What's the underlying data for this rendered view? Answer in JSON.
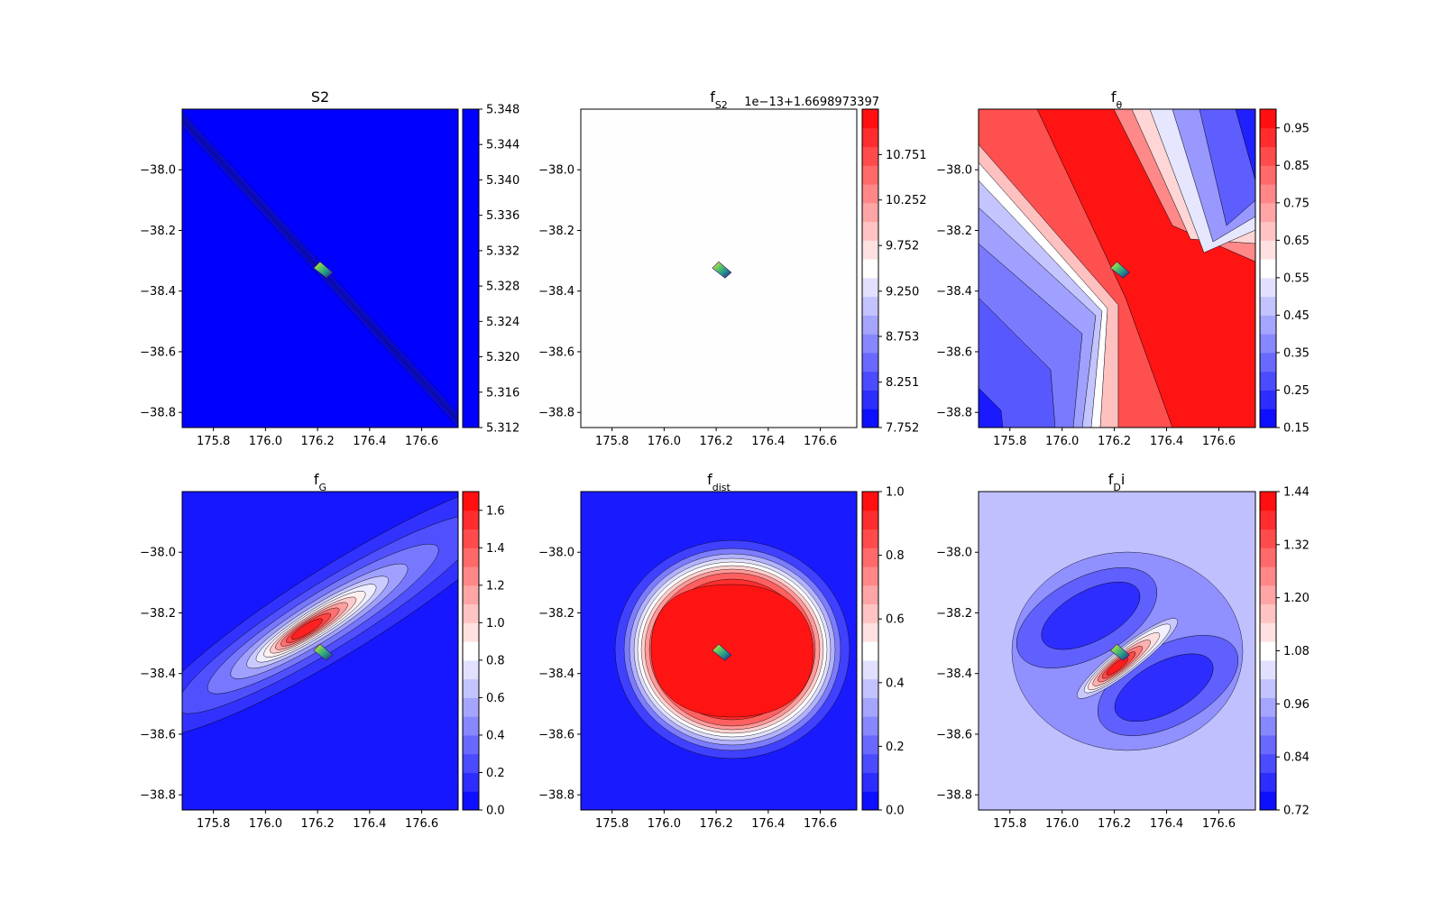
{
  "figure": {
    "panels": [
      {
        "id": "s2",
        "title": "S2",
        "title_sub": "",
        "title_suffix": "",
        "offset_text": ""
      },
      {
        "id": "fs2",
        "title": "f",
        "title_sub": "S2",
        "title_suffix": "",
        "offset_text": "1e−13+1.6698973397"
      },
      {
        "id": "ftheta",
        "title": "f",
        "title_sub": "θ",
        "title_suffix": "",
        "offset_text": ""
      },
      {
        "id": "fg",
        "title": "f",
        "title_sub": "G",
        "title_suffix": "",
        "offset_text": ""
      },
      {
        "id": "fdist",
        "title": "f",
        "title_sub": "dist",
        "title_suffix": "",
        "offset_text": ""
      },
      {
        "id": "fdi",
        "title": "f",
        "title_sub": "D",
        "title_suffix": "i",
        "offset_text": ""
      }
    ]
  },
  "chart_data": [
    {
      "type": "heatmap",
      "title": "S2",
      "x_ticks": [
        "175.8",
        "176.0",
        "176.2",
        "176.4",
        "176.6"
      ],
      "y_ticks": [
        "−38.0",
        "−38.2",
        "−38.4",
        "−38.6",
        "−38.8"
      ],
      "xlim": [
        175.68,
        176.74
      ],
      "ylim": [
        -38.85,
        -37.8
      ],
      "colorbar_ticks": [
        "5.348",
        "5.344",
        "5.340",
        "5.336",
        "5.332",
        "5.328",
        "5.324",
        "5.320",
        "5.316",
        "5.312"
      ],
      "colorbar_range": [
        5.312,
        5.348
      ],
      "colormap": "bwr",
      "marker": {
        "x": 176.22,
        "y": -38.33
      }
    },
    {
      "type": "heatmap",
      "title": "f_S2",
      "offset_text": "1e−13+1.6698973397",
      "x_ticks": [
        "175.8",
        "176.0",
        "176.2",
        "176.4",
        "176.6"
      ],
      "y_ticks": [
        "−38.0",
        "−38.2",
        "−38.4",
        "−38.6",
        "−38.8"
      ],
      "xlim": [
        175.68,
        176.74
      ],
      "ylim": [
        -38.85,
        -37.8
      ],
      "colorbar_ticks": [
        "10.751",
        "10.252",
        "9.752",
        "9.250",
        "8.753",
        "8.251",
        "7.752"
      ],
      "colorbar_range": [
        7.752,
        11.25
      ],
      "colormap": "bwr",
      "marker": {
        "x": 176.22,
        "y": -38.33
      }
    },
    {
      "type": "heatmap",
      "title": "f_θ",
      "x_ticks": [
        "175.8",
        "176.0",
        "176.2",
        "176.4",
        "176.6"
      ],
      "y_ticks": [
        "−38.0",
        "−38.2",
        "−38.4",
        "−38.6",
        "−38.8"
      ],
      "xlim": [
        175.68,
        176.74
      ],
      "ylim": [
        -38.85,
        -37.8
      ],
      "colorbar_ticks": [
        "0.95",
        "0.85",
        "0.75",
        "0.65",
        "0.55",
        "0.45",
        "0.35",
        "0.25",
        "0.15"
      ],
      "colorbar_range": [
        0.15,
        1.0
      ],
      "colormap": "bwr",
      "marker": {
        "x": 176.22,
        "y": -38.33
      }
    },
    {
      "type": "heatmap",
      "title": "f_G",
      "x_ticks": [
        "175.8",
        "176.0",
        "176.2",
        "176.4",
        "176.6"
      ],
      "y_ticks": [
        "−38.0",
        "−38.2",
        "−38.4",
        "−38.6",
        "−38.8"
      ],
      "xlim": [
        175.68,
        176.74
      ],
      "ylim": [
        -38.85,
        -37.8
      ],
      "colorbar_ticks": [
        "1.6",
        "1.4",
        "1.2",
        "1.0",
        "0.8",
        "0.6",
        "0.4",
        "0.2",
        "0.0"
      ],
      "colorbar_range": [
        0.0,
        1.7
      ],
      "colormap": "bwr",
      "marker": {
        "x": 176.22,
        "y": -38.33
      }
    },
    {
      "type": "heatmap",
      "title": "f_dist",
      "x_ticks": [
        "175.8",
        "176.0",
        "176.2",
        "176.4",
        "176.6"
      ],
      "y_ticks": [
        "−38.0",
        "−38.2",
        "−38.4",
        "−38.6",
        "−38.8"
      ],
      "xlim": [
        175.68,
        176.74
      ],
      "ylim": [
        -38.85,
        -37.8
      ],
      "colorbar_ticks": [
        "1.0",
        "0.8",
        "0.6",
        "0.4",
        "0.2",
        "0.0"
      ],
      "colorbar_range": [
        0.0,
        1.0
      ],
      "colormap": "bwr",
      "marker": {
        "x": 176.22,
        "y": -38.33
      }
    },
    {
      "type": "heatmap",
      "title": "f_Di",
      "x_ticks": [
        "175.8",
        "176.0",
        "176.2",
        "176.4",
        "176.6"
      ],
      "y_ticks": [
        "−38.0",
        "−38.2",
        "−38.4",
        "−38.6",
        "−38.8"
      ],
      "xlim": [
        175.68,
        176.74
      ],
      "ylim": [
        -38.85,
        -37.8
      ],
      "colorbar_ticks": [
        "1.44",
        "1.32",
        "1.20",
        "1.08",
        "0.96",
        "0.84",
        "0.72"
      ],
      "colorbar_range": [
        0.72,
        1.44
      ],
      "colormap": "bwr",
      "marker": {
        "x": 176.22,
        "y": -38.33
      }
    }
  ]
}
